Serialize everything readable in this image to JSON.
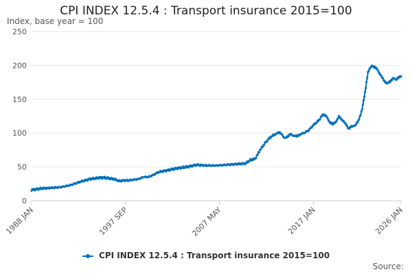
{
  "chart_data": {
    "type": "line",
    "title": "CPI INDEX 12.5.4 : Transport insurance 2015=100",
    "ylabel": "Index, base year = 100",
    "xlabel": "",
    "ylim": [
      0,
      250
    ],
    "yticks": [
      0,
      50,
      100,
      150,
      200,
      250
    ],
    "xlim": [
      1988.0,
      2026.0
    ],
    "xticks": [
      {
        "label": "1988 JAN",
        "value": 1988.0
      },
      {
        "label": "1997 SEP",
        "value": 1997.67
      },
      {
        "label": "2007 MAY",
        "value": 2007.33
      },
      {
        "label": "2017 JAN",
        "value": 2017.0
      },
      {
        "label": "2026 JAN",
        "value": 2026.0
      }
    ],
    "grid": true,
    "legend_position": "bottom",
    "series": [
      {
        "name": "CPI INDEX 12.5.4 : Transport insurance 2015=100",
        "color": "#0071bc",
        "x": [
          1988.0,
          1989.0,
          1990.0,
          1991.0,
          1992.0,
          1993.0,
          1994.0,
          1995.0,
          1995.5,
          1996.0,
          1996.5,
          1997.0,
          1997.5,
          1998.0,
          1998.5,
          1999.0,
          1999.5,
          2000.0,
          2000.5,
          2001.0,
          2002.0,
          2003.0,
          2004.0,
          2005.0,
          2006.0,
          2007.0,
          2008.0,
          2009.0,
          2010.0,
          2010.5,
          2011.0,
          2011.5,
          2012.0,
          2012.5,
          2013.0,
          2013.3,
          2013.6,
          2013.8,
          2014.0,
          2014.3,
          2014.6,
          2015.0,
          2015.3,
          2015.6,
          2016.0,
          2016.5,
          2017.0,
          2017.5,
          2018.0,
          2018.3,
          2018.6,
          2019.0,
          2019.3,
          2019.6,
          2020.0,
          2020.3,
          2020.6,
          2021.0,
          2021.3,
          2021.6,
          2022.0,
          2022.3,
          2022.6,
          2023.0,
          2023.3,
          2023.6,
          2024.0,
          2024.3,
          2024.6,
          2024.9,
          2025.2,
          2025.5,
          2025.8,
          2026.0
        ],
        "values": [
          16,
          18,
          19,
          20,
          23,
          28,
          32,
          34,
          34,
          33,
          32,
          29,
          30,
          30,
          31,
          32,
          35,
          35,
          38,
          42,
          45,
          48,
          50,
          53,
          52,
          52,
          53,
          54,
          55,
          60,
          62,
          75,
          85,
          93,
          98,
          100,
          100,
          97,
          92,
          95,
          98,
          96,
          95,
          98,
          100,
          104,
          112,
          118,
          128,
          125,
          117,
          113,
          117,
          124,
          119,
          113,
          107,
          110,
          112,
          117,
          135,
          160,
          190,
          200,
          197,
          193,
          183,
          177,
          173,
          176,
          182,
          178,
          183,
          184
        ]
      }
    ]
  },
  "source_label": "Source:"
}
